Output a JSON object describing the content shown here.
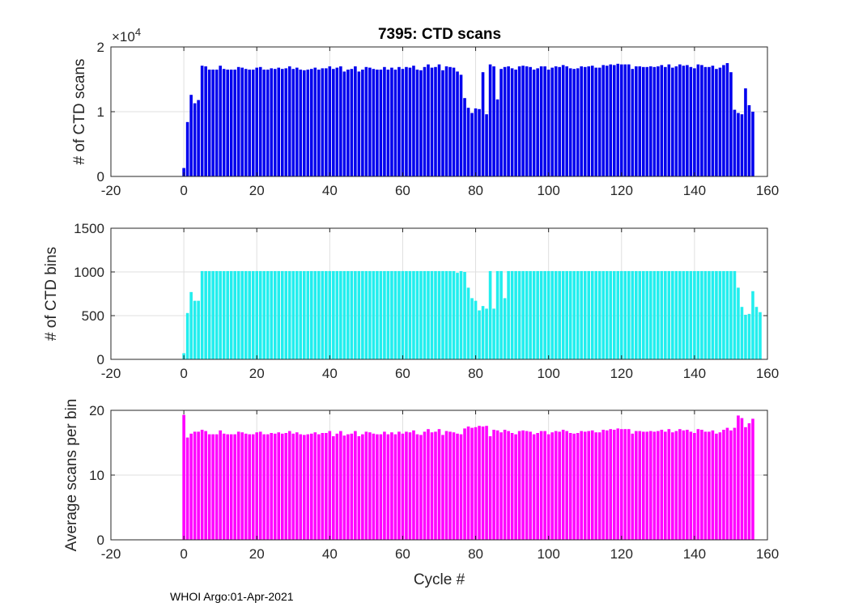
{
  "figure": {
    "title": "7395: CTD scans",
    "footer": "WHOI Argo:01-Apr-2021"
  },
  "chart_data": [
    {
      "type": "bar",
      "ylabel": "# of CTD scans",
      "xlabel": "",
      "xlim": [
        -20,
        160
      ],
      "ylim": [
        0,
        20000
      ],
      "xticks": [
        "-20",
        "0",
        "20",
        "40",
        "60",
        "80",
        "100",
        "120",
        "140",
        "160"
      ],
      "yticks": [
        "0",
        "1",
        "2"
      ],
      "y_exponent_label": "×10",
      "y_exponent_power": "4",
      "grid": true,
      "color": "#0000ee",
      "x_start": 0,
      "values": [
        1300,
        8400,
        12600,
        11300,
        11800,
        17100,
        17000,
        16500,
        16500,
        16500,
        17100,
        16600,
        16500,
        16500,
        16500,
        16900,
        16800,
        16600,
        16500,
        16500,
        16800,
        16900,
        16500,
        16500,
        16700,
        16600,
        16800,
        16600,
        16700,
        17000,
        16600,
        16800,
        16500,
        16400,
        16500,
        16600,
        16800,
        16500,
        16700,
        16700,
        17000,
        16600,
        16800,
        17000,
        16200,
        16500,
        16600,
        17000,
        16200,
        16500,
        16900,
        16800,
        16600,
        16500,
        16500,
        16900,
        16500,
        16800,
        16500,
        16900,
        16600,
        16900,
        16800,
        17100,
        16500,
        16400,
        16900,
        17300,
        16800,
        16900,
        17300,
        16400,
        17000,
        16900,
        16800,
        16200,
        15700,
        12100,
        10600,
        9800,
        10500,
        10400,
        16100,
        9600,
        17300,
        17000,
        11900,
        16600,
        16900,
        17000,
        16700,
        16500,
        17000,
        17100,
        17000,
        16900,
        16500,
        16700,
        17000,
        17000,
        16500,
        16800,
        17000,
        16900,
        17200,
        17000,
        16700,
        16600,
        16700,
        17000,
        16900,
        17000,
        17100,
        16800,
        16800,
        17200,
        17100,
        17300,
        17200,
        17400,
        17300,
        17300,
        17300,
        16600,
        17000,
        17000,
        16900,
        16900,
        17000,
        16900,
        17000,
        17200,
        16900,
        17300,
        16800,
        17000,
        17300,
        17100,
        17200,
        16900,
        16700,
        17300,
        17200,
        16900,
        16900,
        17100,
        16600,
        16800,
        17200,
        17500,
        16100,
        10300,
        9800,
        9600,
        13600,
        11000,
        10000
      ]
    },
    {
      "type": "bar",
      "ylabel": "# of CTD bins",
      "xlabel": "",
      "xlim": [
        -20,
        160
      ],
      "ylim": [
        0,
        1500
      ],
      "xticks": [
        "-20",
        "0",
        "20",
        "40",
        "60",
        "80",
        "100",
        "120",
        "140",
        "160"
      ],
      "yticks": [
        "0",
        "500",
        "1000",
        "1500"
      ],
      "grid": true,
      "color": "#22eeee",
      "x_start": 0,
      "values": [
        70,
        530,
        770,
        670,
        670,
        1010,
        1010,
        1010,
        1010,
        1010,
        1010,
        1010,
        1010,
        1010,
        1010,
        1010,
        1010,
        1010,
        1010,
        1010,
        1010,
        1010,
        1010,
        1010,
        1010,
        1010,
        1010,
        1010,
        1010,
        1010,
        1010,
        1010,
        1010,
        1010,
        1010,
        1010,
        1010,
        1010,
        1010,
        1010,
        1010,
        1010,
        1010,
        1010,
        1010,
        1010,
        1010,
        1010,
        1010,
        1010,
        1010,
        1010,
        1010,
        1010,
        1010,
        1010,
        1010,
        1010,
        1010,
        1010,
        1010,
        1010,
        1010,
        1010,
        1010,
        1010,
        1010,
        1010,
        1010,
        1010,
        1010,
        1010,
        1010,
        1010,
        1010,
        990,
        1010,
        1000,
        820,
        700,
        670,
        560,
        610,
        580,
        1010,
        580,
        1010,
        1010,
        700,
        1010,
        1010,
        1010,
        1010,
        1010,
        1010,
        1010,
        1010,
        1010,
        1010,
        1010,
        1010,
        1010,
        1010,
        1010,
        1010,
        1010,
        1010,
        1010,
        1010,
        1010,
        1010,
        1010,
        1010,
        1010,
        1010,
        1010,
        1010,
        1010,
        1010,
        1010,
        1010,
        1010,
        1010,
        1010,
        1010,
        1010,
        1010,
        1010,
        1010,
        1010,
        1010,
        1010,
        1010,
        1010,
        1010,
        1010,
        1010,
        1010,
        1010,
        1010,
        1010,
        1010,
        1010,
        1010,
        1010,
        1010,
        1010,
        1010,
        1010,
        1010,
        1010,
        1010,
        820,
        600,
        510,
        520,
        780,
        600,
        540
      ]
    },
    {
      "type": "bar",
      "ylabel": "Average scans per bin",
      "xlabel": "Cycle #",
      "xlim": [
        -20,
        160
      ],
      "ylim": [
        0,
        20
      ],
      "xticks": [
        "-20",
        "0",
        "20",
        "40",
        "60",
        "80",
        "100",
        "120",
        "140",
        "160"
      ],
      "yticks": [
        "0",
        "10",
        "20"
      ],
      "grid": true,
      "color": "#ff00ff",
      "x_start": 0,
      "values": [
        19.3,
        15.8,
        16.4,
        16.7,
        16.7,
        17.0,
        16.8,
        16.3,
        16.3,
        16.3,
        16.9,
        16.4,
        16.3,
        16.3,
        16.3,
        16.7,
        16.6,
        16.4,
        16.3,
        16.3,
        16.6,
        16.7,
        16.3,
        16.3,
        16.5,
        16.4,
        16.6,
        16.4,
        16.5,
        16.8,
        16.4,
        16.6,
        16.3,
        16.2,
        16.3,
        16.4,
        16.6,
        16.3,
        16.5,
        16.5,
        16.8,
        16.0,
        16.4,
        16.8,
        16.1,
        16.3,
        16.4,
        16.8,
        16.0,
        16.3,
        16.7,
        16.6,
        16.4,
        16.3,
        16.3,
        16.7,
        16.3,
        16.6,
        16.3,
        16.7,
        16.4,
        16.7,
        16.6,
        16.9,
        16.3,
        16.2,
        16.7,
        17.1,
        16.6,
        16.7,
        17.1,
        16.2,
        16.8,
        16.7,
        16.6,
        16.4,
        16.3,
        17.2,
        17.5,
        17.3,
        17.4,
        17.6,
        17.5,
        17.6,
        16.0,
        17.0,
        16.9,
        16.6,
        17.0,
        16.8,
        16.5,
        16.3,
        16.8,
        16.9,
        16.8,
        16.7,
        16.3,
        16.5,
        16.8,
        16.8,
        16.3,
        16.6,
        16.8,
        16.7,
        17.0,
        16.8,
        16.5,
        16.4,
        16.5,
        16.8,
        16.7,
        16.8,
        16.9,
        16.6,
        16.6,
        17.0,
        16.9,
        17.1,
        17.0,
        17.2,
        17.1,
        17.1,
        17.1,
        16.4,
        16.8,
        16.8,
        16.7,
        16.7,
        16.8,
        16.7,
        16.8,
        17.0,
        16.7,
        17.1,
        16.6,
        16.8,
        17.1,
        16.9,
        17.0,
        16.7,
        16.5,
        17.1,
        17.0,
        16.7,
        16.7,
        16.9,
        16.4,
        16.6,
        17.0,
        17.3,
        16.9,
        17.3,
        19.2,
        18.8,
        17.4,
        18.0,
        18.7
      ]
    }
  ]
}
